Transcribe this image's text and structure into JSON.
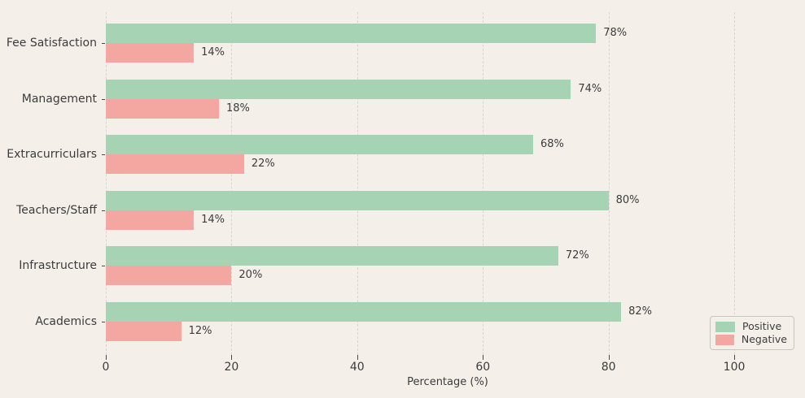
{
  "colors": {
    "background": "#f4efe9",
    "positive": "#a6d3b4",
    "negative": "#f4a7a0",
    "gridline": "#d9d4ce",
    "text": "#3c3c3c"
  },
  "chart_data": {
    "type": "bar",
    "orientation": "horizontal",
    "title": "",
    "xlabel": "Percentage (%)",
    "ylabel": "",
    "categories": [
      "Fee Satisfaction",
      "Management",
      "Extracurriculars",
      "Teachers/Staff",
      "Infrastructure",
      "Academics"
    ],
    "series": [
      {
        "name": "Positive",
        "color": "#a6d3b4",
        "values": [
          78,
          74,
          68,
          80,
          72,
          82
        ]
      },
      {
        "name": "Negative",
        "color": "#f4a7a0",
        "values": [
          14,
          18,
          22,
          14,
          20,
          12
        ]
      }
    ],
    "value_labels": {
      "Positive": [
        "78%",
        "74%",
        "68%",
        "80%",
        "72%",
        "82%"
      ],
      "Negative": [
        "14%",
        "18%",
        "22%",
        "14%",
        "20%",
        "12%"
      ]
    },
    "xticks": [
      0,
      20,
      40,
      60,
      80,
      100
    ],
    "xtick_labels": [
      "0",
      "20",
      "40",
      "60",
      "80",
      "100"
    ],
    "xlim": [
      0,
      108.8
    ],
    "grid": "vertical-dashed",
    "legend": {
      "position": "lower right",
      "entries": [
        "Positive",
        "Negative"
      ]
    }
  }
}
